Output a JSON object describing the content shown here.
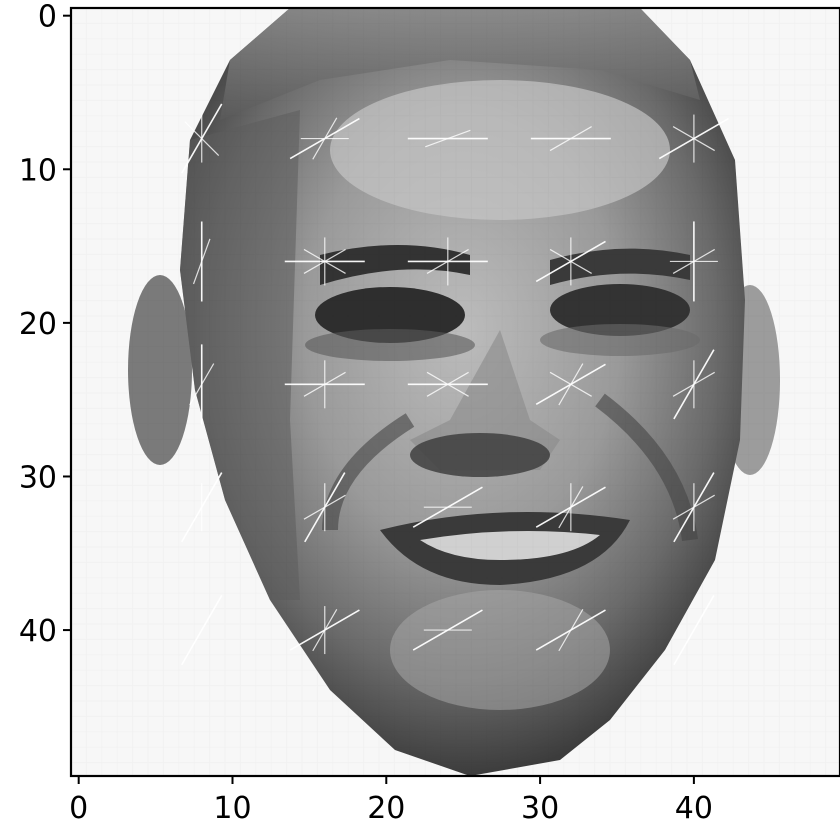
{
  "chart_data": {
    "type": "heatmap",
    "title": "",
    "xlabel": "",
    "ylabel": "",
    "xlim": [
      -0.5,
      49.5
    ],
    "ylim": [
      49.5,
      -0.5
    ],
    "grid": false,
    "legend": "none",
    "colormap": "gray",
    "x_ticks": [
      {
        "value": 0,
        "label": "0"
      },
      {
        "value": 10,
        "label": "10"
      },
      {
        "value": 20,
        "label": "20"
      },
      {
        "value": 30,
        "label": "30"
      },
      {
        "value": 40,
        "label": "40"
      }
    ],
    "y_ticks": [
      {
        "value": 0,
        "label": "0"
      },
      {
        "value": 10,
        "label": "10"
      },
      {
        "value": 20,
        "label": "20"
      },
      {
        "value": 30,
        "label": "30"
      },
      {
        "value": 40,
        "label": "40"
      }
    ],
    "image_description_grid": {
      "rows": 50,
      "cols": 50
    },
    "hog_cells": [
      {
        "x": 8,
        "y": 8,
        "angles": [
          60,
          90,
          135
        ]
      },
      {
        "x": 16,
        "y": 8,
        "angles": [
          30,
          0,
          60
        ]
      },
      {
        "x": 24,
        "y": 8,
        "angles": [
          0,
          20
        ]
      },
      {
        "x": 32,
        "y": 8,
        "angles": [
          0,
          30
        ]
      },
      {
        "x": 40,
        "y": 8,
        "angles": [
          30,
          90,
          150
        ]
      },
      {
        "x": 8,
        "y": 16,
        "angles": [
          90,
          70
        ]
      },
      {
        "x": 16,
        "y": 16,
        "angles": [
          0,
          30,
          90,
          150
        ]
      },
      {
        "x": 24,
        "y": 16,
        "angles": [
          0,
          30,
          90
        ]
      },
      {
        "x": 32,
        "y": 16,
        "angles": [
          30,
          90,
          150
        ]
      },
      {
        "x": 40,
        "y": 16,
        "angles": [
          90,
          30,
          0
        ]
      },
      {
        "x": 8,
        "y": 24,
        "angles": [
          90,
          60
        ]
      },
      {
        "x": 16,
        "y": 24,
        "angles": [
          0,
          30,
          90
        ]
      },
      {
        "x": 24,
        "y": 24,
        "angles": [
          0,
          30,
          150
        ]
      },
      {
        "x": 32,
        "y": 24,
        "angles": [
          30,
          60,
          150
        ]
      },
      {
        "x": 40,
        "y": 24,
        "angles": [
          60,
          30,
          90
        ]
      },
      {
        "x": 8,
        "y": 32,
        "angles": [
          60,
          90
        ]
      },
      {
        "x": 16,
        "y": 32,
        "angles": [
          60,
          30,
          90
        ]
      },
      {
        "x": 24,
        "y": 32,
        "angles": [
          30,
          0
        ]
      },
      {
        "x": 32,
        "y": 32,
        "angles": [
          30,
          60,
          90
        ]
      },
      {
        "x": 40,
        "y": 32,
        "angles": [
          60,
          30,
          90
        ]
      },
      {
        "x": 8,
        "y": 40,
        "angles": [
          60
        ]
      },
      {
        "x": 16,
        "y": 40,
        "angles": [
          30,
          60,
          90
        ]
      },
      {
        "x": 24,
        "y": 40,
        "angles": [
          30,
          0
        ]
      },
      {
        "x": 32,
        "y": 40,
        "angles": [
          30,
          60
        ]
      },
      {
        "x": 40,
        "y": 40,
        "angles": [
          60
        ]
      }
    ]
  }
}
